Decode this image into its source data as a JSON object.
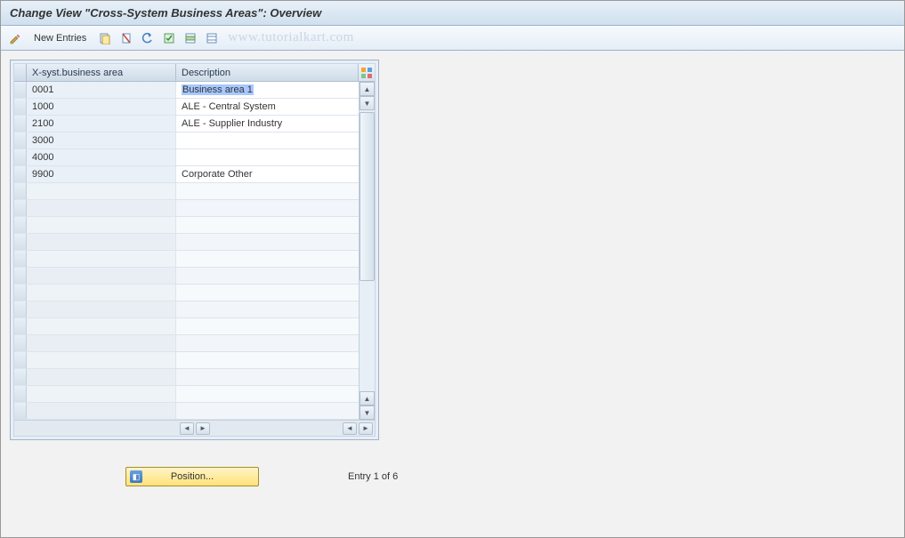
{
  "title": "Change View \"Cross-System Business Areas\": Overview",
  "toolbar": {
    "new_entries_label": "New Entries"
  },
  "watermark": "www.tutorialkart.com",
  "table": {
    "columns": {
      "col1": "X-syst.business area",
      "col2": "Description"
    },
    "rows": [
      {
        "code": "0001",
        "desc": "Business area 1",
        "selected": true
      },
      {
        "code": "1000",
        "desc": "ALE - Central System",
        "selected": false
      },
      {
        "code": "2100",
        "desc": "ALE - Supplier Industry",
        "selected": false
      },
      {
        "code": "3000",
        "desc": "",
        "selected": false
      },
      {
        "code": "4000",
        "desc": "",
        "selected": false
      },
      {
        "code": "9900",
        "desc": "Corporate Other",
        "selected": false
      }
    ],
    "empty_row_count": 14,
    "colors": {
      "header_bg": "#d7e2ec",
      "key_col_bg": "#e9f0f7",
      "data_bg": "#ffffff",
      "border": "#9fb3c8",
      "selection_highlight": "#a8c8ff"
    }
  },
  "position_button": {
    "label": "Position..."
  },
  "entry_status": "Entry 1 of 6"
}
